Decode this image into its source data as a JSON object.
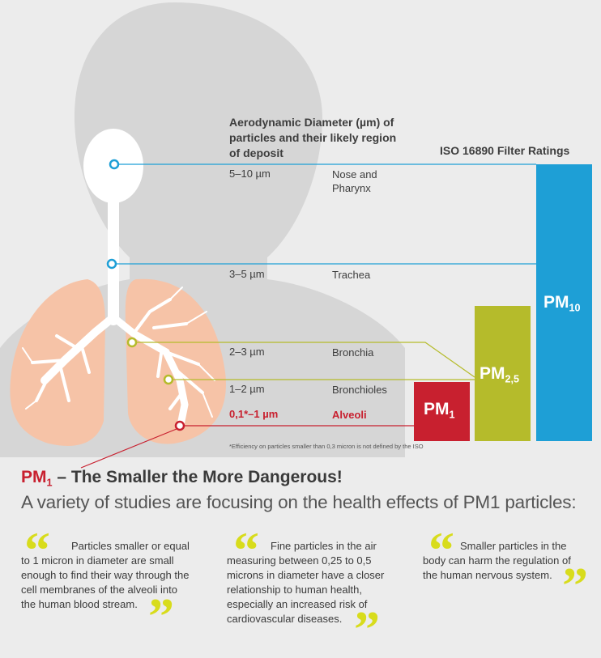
{
  "header": {
    "line1": "Aerodynamic Diameter (µm) of",
    "line2": "particles and their likely region",
    "line3": "of deposit"
  },
  "iso_label": "ISO 16890 Filter Ratings",
  "rows": [
    {
      "size": "5–10 µm",
      "region_line1": "Nose and",
      "region_line2": "Pharynx"
    },
    {
      "size": "3–5 µm",
      "region_line1": "Trachea",
      "region_line2": ""
    },
    {
      "size": "2–3 µm",
      "region_line1": "Bronchia",
      "region_line2": ""
    },
    {
      "size": "1–2 µm",
      "region_line1": "Bronchioles",
      "region_line2": ""
    },
    {
      "size": "0,1*–1 µm",
      "region_line1": "Alveoli",
      "region_line2": ""
    }
  ],
  "bars": [
    {
      "main": "PM",
      "sub": "1"
    },
    {
      "main": "PM",
      "sub": "2,5"
    },
    {
      "main": "PM",
      "sub": "10"
    }
  ],
  "footnote": "*Efficiency on particles smaller than 0,3 micron is not defined by the ISO",
  "title": {
    "pm": "PM",
    "sub": "1",
    "rest": " – The Smaller the More Dangerous!"
  },
  "subtitle": "A variety of studies are focusing on the health effects of PM1 particles:",
  "quotes": [
    {
      "lines": [
        "Particles smaller or equal",
        "to 1 micron in diameter are small",
        "enough to find their way through the",
        "cell membranes of the alveoli into",
        "the human blood stream."
      ]
    },
    {
      "lines": [
        "Fine particles in the air",
        "measuring between 0,25 to 0,5",
        "microns in diameter have a closer",
        "relationship to human health,",
        "especially an increased risk of",
        "cardiovascular diseases."
      ]
    },
    {
      "lines": [
        "Smaller particles in the",
        "body can harm the regulation of",
        "the human nervous system."
      ]
    }
  ],
  "colors": {
    "background": "#ececec",
    "silhouette": "#d4d4d4",
    "lung": "#f6c2a6",
    "airway": "#ffffff",
    "pm10": "#1e9fd6",
    "pm25": "#b5bb2b",
    "pm1": "#c8202f",
    "quote_mark": "#d8dc1c"
  }
}
